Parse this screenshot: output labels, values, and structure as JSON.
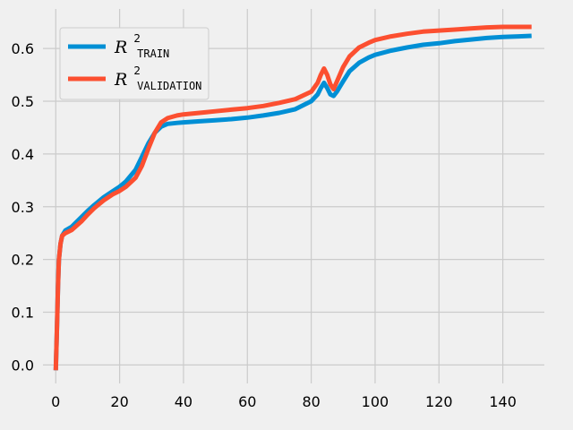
{
  "chart_data": {
    "type": "line",
    "title": "",
    "xlabel": "",
    "ylabel": "",
    "xlim": [
      -4,
      153
    ],
    "ylim": [
      -0.035,
      0.675
    ],
    "xticks": [
      0,
      20,
      40,
      60,
      80,
      100,
      120,
      140
    ],
    "yticks": [
      0.0,
      0.1,
      0.2,
      0.3,
      0.4,
      0.5,
      0.6
    ],
    "xtick_labels": [
      "0",
      "20",
      "40",
      "60",
      "80",
      "100",
      "120",
      "140"
    ],
    "ytick_labels": [
      "0.0",
      "0.1",
      "0.2",
      "0.3",
      "0.4",
      "0.5",
      "0.6"
    ],
    "grid": true,
    "legend_position": "top-left",
    "series": [
      {
        "name": "R²_TRAIN",
        "legend_main": "R",
        "legend_sup": "2",
        "legend_sub": "TRAIN",
        "color": "#008fd5",
        "x": [
          0,
          0.3,
          0.7,
          1,
          1.5,
          2,
          3,
          5,
          8,
          10,
          12,
          15,
          18,
          20,
          22,
          25,
          27,
          29,
          31,
          33,
          35,
          38,
          40,
          45,
          50,
          55,
          60,
          65,
          70,
          75,
          80,
          82,
          83,
          84,
          85,
          86,
          87,
          88,
          90,
          92,
          95,
          98,
          100,
          105,
          110,
          115,
          120,
          125,
          130,
          135,
          140,
          145,
          149
        ],
        "y": [
          -0.01,
          0.05,
          0.15,
          0.2,
          0.23,
          0.245,
          0.255,
          0.262,
          0.28,
          0.292,
          0.303,
          0.318,
          0.33,
          0.338,
          0.348,
          0.37,
          0.395,
          0.42,
          0.44,
          0.452,
          0.457,
          0.459,
          0.46,
          0.462,
          0.464,
          0.466,
          0.469,
          0.473,
          0.478,
          0.485,
          0.5,
          0.513,
          0.525,
          0.535,
          0.525,
          0.513,
          0.51,
          0.518,
          0.538,
          0.557,
          0.573,
          0.583,
          0.588,
          0.596,
          0.602,
          0.607,
          0.61,
          0.614,
          0.617,
          0.62,
          0.622,
          0.623,
          0.624
        ]
      },
      {
        "name": "R²_VALIDATION",
        "legend_main": "R",
        "legend_sup": "2",
        "legend_sub": "VALIDATION",
        "color": "#fc4f30",
        "x": [
          0,
          0.3,
          0.7,
          1,
          1.5,
          2,
          3,
          5,
          8,
          10,
          12,
          15,
          18,
          20,
          22,
          25,
          27,
          29,
          31,
          33,
          35,
          38,
          40,
          45,
          50,
          55,
          60,
          65,
          70,
          75,
          80,
          82,
          83,
          84,
          85,
          86,
          87,
          88,
          90,
          92,
          95,
          98,
          100,
          105,
          110,
          115,
          120,
          125,
          130,
          135,
          140,
          145,
          149
        ],
        "y": [
          -0.01,
          0.05,
          0.15,
          0.2,
          0.23,
          0.245,
          0.25,
          0.256,
          0.272,
          0.285,
          0.297,
          0.312,
          0.324,
          0.33,
          0.338,
          0.355,
          0.378,
          0.41,
          0.44,
          0.46,
          0.468,
          0.473,
          0.475,
          0.478,
          0.481,
          0.484,
          0.487,
          0.491,
          0.497,
          0.504,
          0.518,
          0.535,
          0.55,
          0.562,
          0.55,
          0.532,
          0.523,
          0.537,
          0.565,
          0.585,
          0.602,
          0.611,
          0.616,
          0.623,
          0.628,
          0.632,
          0.634,
          0.636,
          0.638,
          0.64,
          0.641,
          0.641,
          0.641
        ]
      }
    ]
  }
}
